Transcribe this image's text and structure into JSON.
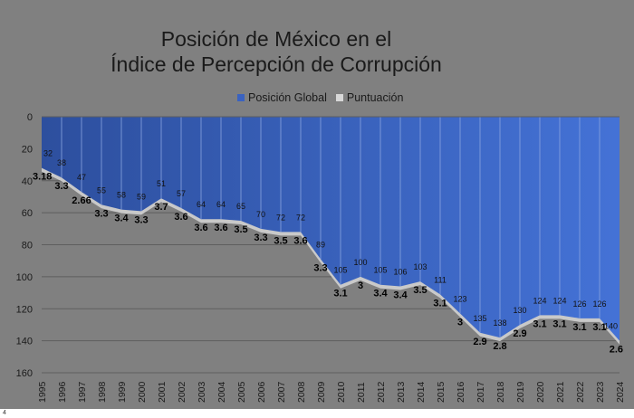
{
  "chart_data": {
    "type": "area",
    "title_lines": [
      "Posición de México en el",
      "Índice de Percepción de Corrupción"
    ],
    "x": [
      "1995",
      "1996",
      "1997",
      "1998",
      "1999",
      "2000",
      "2001",
      "2002",
      "2003",
      "2004",
      "2005",
      "2006",
      "2007",
      "2008",
      "2009",
      "2010",
      "2011",
      "2012",
      "2013",
      "2014",
      "2015",
      "2016",
      "2017",
      "2018",
      "2019",
      "2020",
      "2021",
      "2022",
      "2023",
      "2024"
    ],
    "series": [
      {
        "name": "Posición Global",
        "values": [
          32,
          38,
          47,
          55,
          58,
          59,
          51,
          57,
          64,
          64,
          65,
          70,
          72,
          72,
          89,
          105,
          100,
          105,
          106,
          103,
          111,
          123,
          135,
          138,
          130,
          124,
          124,
          126,
          126,
          140
        ]
      },
      {
        "name": "Puntuación",
        "values": [
          3.18,
          3.3,
          2.66,
          3.3,
          3.4,
          3.3,
          3.7,
          3.6,
          3.6,
          3.6,
          3.5,
          3.3,
          3.5,
          3.6,
          3.3,
          3.1,
          3,
          3.4,
          3.4,
          3.5,
          3.1,
          3,
          2.9,
          2.8,
          2.9,
          3.1,
          3.1,
          3.1,
          3.1,
          2.6
        ]
      }
    ],
    "y_ticks": [
      "0",
      "20",
      "40",
      "60",
      "80",
      "100",
      "120",
      "140",
      "160"
    ],
    "ylim": [
      0,
      160
    ],
    "y_inverted": true,
    "legend_position": "top",
    "gridlines": true,
    "colors": {
      "Posición Global": "#3a62c0",
      "Puntuación": "#d0d0d0",
      "background": "#808080"
    }
  },
  "footnote": "4"
}
